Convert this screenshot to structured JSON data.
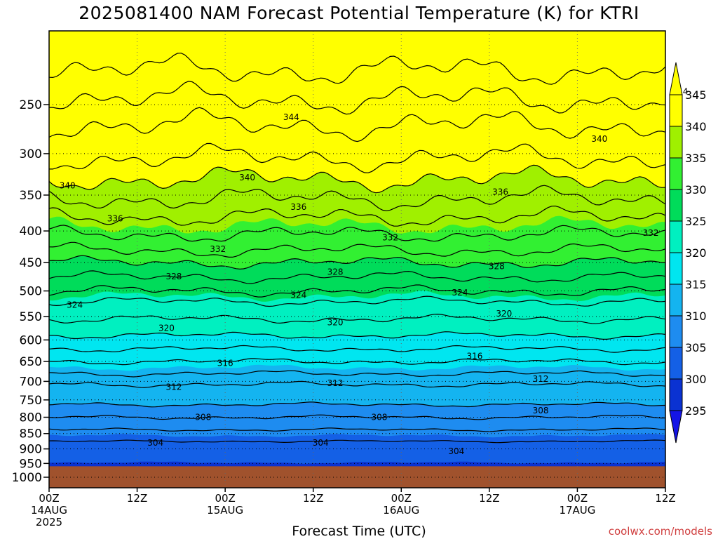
{
  "chart_data": {
    "type": "heatmap",
    "title": "2025081400 NAM Forecast Potential Temperature (K) for KTRI",
    "xlabel": "Forecast Time (UTC)",
    "ylabel": "",
    "y_scale": "log pressure",
    "ylim": [
      1040,
      190
    ],
    "y_ticks": [
      250,
      300,
      350,
      400,
      450,
      500,
      550,
      600,
      650,
      700,
      750,
      800,
      850,
      900,
      950,
      1000
    ],
    "x_ticks": [
      {
        "hour": 0,
        "l1": "00Z",
        "l2": "14AUG",
        "l3": "2025"
      },
      {
        "hour": 12,
        "l1": "12Z",
        "l2": "",
        "l3": ""
      },
      {
        "hour": 24,
        "l1": "00Z",
        "l2": "15AUG",
        "l3": ""
      },
      {
        "hour": 36,
        "l1": "12Z",
        "l2": "",
        "l3": ""
      },
      {
        "hour": 48,
        "l1": "00Z",
        "l2": "16AUG",
        "l3": ""
      },
      {
        "hour": 60,
        "l1": "12Z",
        "l2": "",
        "l3": ""
      },
      {
        "hour": 72,
        "l1": "00Z",
        "l2": "17AUG",
        "l3": ""
      },
      {
        "hour": 84,
        "l1": "12Z",
        "l2": "",
        "l3": ""
      }
    ],
    "grid": true,
    "surface_pressure_hPa": 960,
    "surface_color": "#a0522d",
    "colorbar": {
      "levels": [
        295,
        300,
        305,
        310,
        315,
        320,
        325,
        330,
        335,
        340,
        345
      ],
      "colors": [
        "#1414e6",
        "#0a32d2",
        "#1460e6",
        "#1e8cf0",
        "#14b4f0",
        "#00e6f0",
        "#00f0c0",
        "#00dc5a",
        "#32f032",
        "#a0f000",
        "#ffff00",
        "#ffff00"
      ]
    },
    "isentropes": [
      {
        "theta": 304,
        "base_p": 875,
        "amp": 4
      },
      {
        "theta": 306,
        "base_p": 838,
        "amp": 4
      },
      {
        "theta": 308,
        "base_p": 800,
        "amp": 5
      },
      {
        "theta": 310,
        "base_p": 763,
        "amp": 5
      },
      {
        "theta": 312,
        "base_p": 708,
        "amp": 6
      },
      {
        "theta": 314,
        "base_p": 680,
        "amp": 6
      },
      {
        "theta": 316,
        "base_p": 650,
        "amp": 6
      },
      {
        "theta": 318,
        "base_p": 620,
        "amp": 6
      },
      {
        "theta": 320,
        "base_p": 590,
        "amp": 6
      },
      {
        "theta": 322,
        "base_p": 555,
        "amp": 7
      },
      {
        "theta": 324,
        "base_p": 520,
        "amp": 7
      },
      {
        "theta": 326,
        "base_p": 500,
        "amp": 8
      },
      {
        "theta": 328,
        "base_p": 475,
        "amp": 8
      },
      {
        "theta": 330,
        "base_p": 450,
        "amp": 8
      },
      {
        "theta": 332,
        "base_p": 430,
        "amp": 9
      },
      {
        "theta": 334,
        "base_p": 405,
        "amp": 10
      },
      {
        "theta": 336,
        "base_p": 380,
        "amp": 11
      },
      {
        "theta": 338,
        "base_p": 355,
        "amp": 12
      },
      {
        "theta": 340,
        "base_p": 330,
        "amp": 12
      },
      {
        "theta": 342,
        "base_p": 305,
        "amp": 12
      },
      {
        "theta": 344,
        "base_p": 270,
        "amp": 12
      },
      {
        "theta": 346,
        "base_p": 245,
        "amp": 11
      },
      {
        "theta": 348,
        "base_p": 220,
        "amp": 10
      }
    ],
    "contour_labels": [
      {
        "text": "344",
        "hour": 86,
        "p": 238
      },
      {
        "text": "344",
        "hour": 33,
        "p": 262
      },
      {
        "text": "340",
        "hour": 75,
        "p": 284
      },
      {
        "text": "340",
        "hour": 2.5,
        "p": 338
      },
      {
        "text": "340",
        "hour": 27,
        "p": 328
      },
      {
        "text": "336",
        "hour": 61.5,
        "p": 346
      },
      {
        "text": "336",
        "hour": 34,
        "p": 366
      },
      {
        "text": "336",
        "hour": 9,
        "p": 382
      },
      {
        "text": "332",
        "hour": 23,
        "p": 428
      },
      {
        "text": "332",
        "hour": 46.5,
        "p": 410
      },
      {
        "text": "332",
        "hour": 82,
        "p": 403
      },
      {
        "text": "328",
        "hour": 17,
        "p": 474
      },
      {
        "text": "328",
        "hour": 39,
        "p": 466
      },
      {
        "text": "328",
        "hour": 61,
        "p": 456
      },
      {
        "text": "324",
        "hour": 3.5,
        "p": 527
      },
      {
        "text": "324",
        "hour": 34,
        "p": 508
      },
      {
        "text": "324",
        "hour": 56,
        "p": 503
      },
      {
        "text": "320",
        "hour": 16,
        "p": 574
      },
      {
        "text": "320",
        "hour": 39,
        "p": 562
      },
      {
        "text": "320",
        "hour": 62,
        "p": 544
      },
      {
        "text": "316",
        "hour": 24,
        "p": 654
      },
      {
        "text": "316",
        "hour": 58,
        "p": 637
      },
      {
        "text": "312",
        "hour": 17,
        "p": 715
      },
      {
        "text": "312",
        "hour": 39,
        "p": 705
      },
      {
        "text": "312",
        "hour": 67,
        "p": 694
      },
      {
        "text": "308",
        "hour": 21,
        "p": 800
      },
      {
        "text": "308",
        "hour": 45,
        "p": 800
      },
      {
        "text": "308",
        "hour": 67,
        "p": 780
      },
      {
        "text": "304",
        "hour": 14.5,
        "p": 880
      },
      {
        "text": "304",
        "hour": 37,
        "p": 880
      },
      {
        "text": "304",
        "hour": 55.5,
        "p": 908
      }
    ]
  },
  "credit": "coolwx.com/models"
}
